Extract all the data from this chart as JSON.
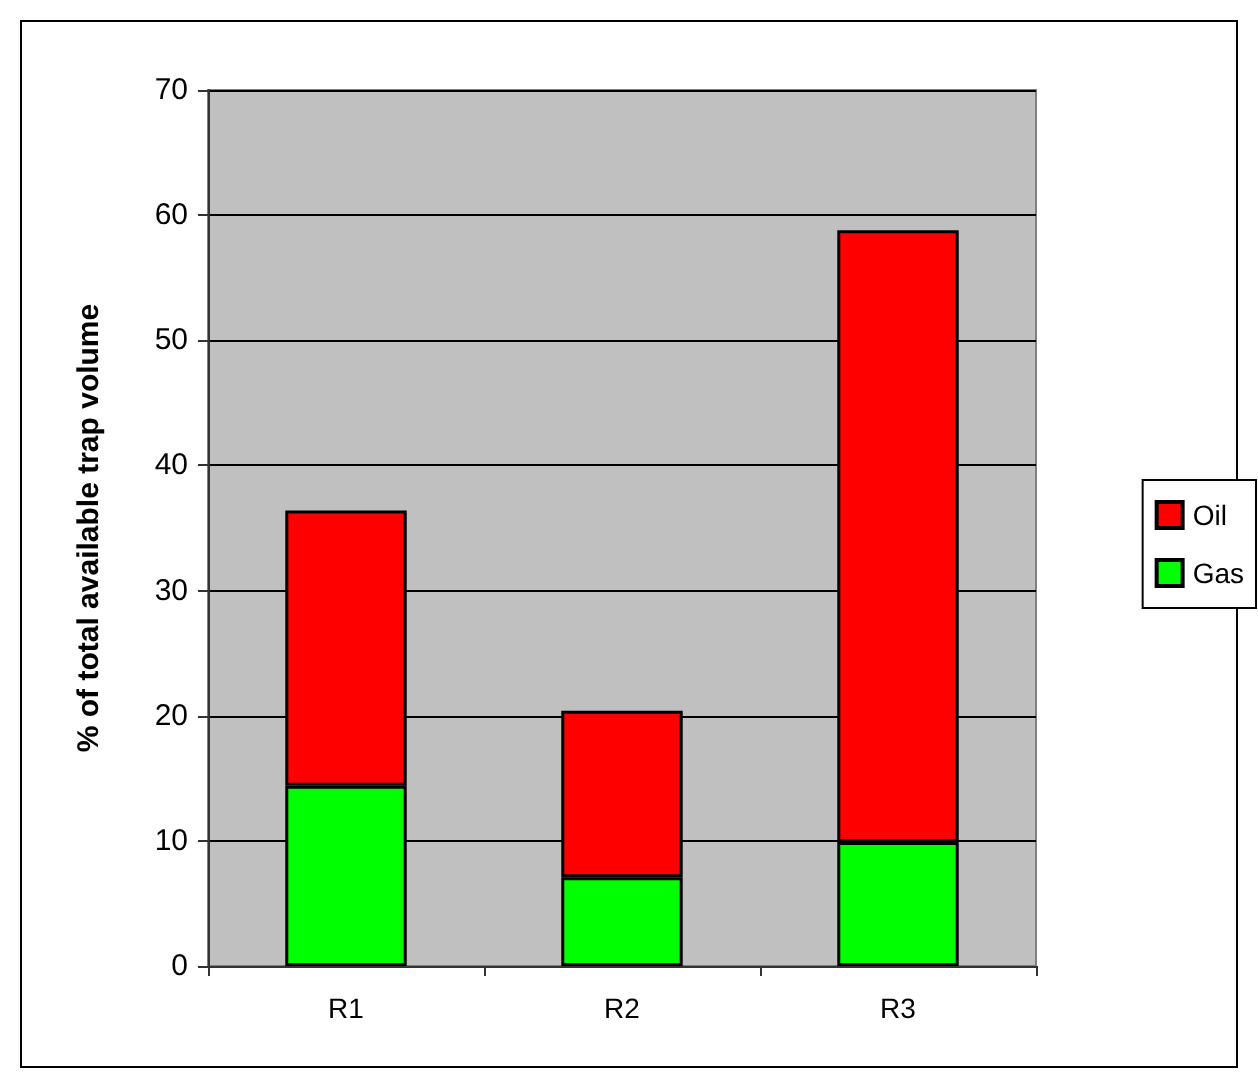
{
  "chart_data": {
    "type": "bar",
    "ylabel": "% of total available trap volume",
    "categories": [
      "R1",
      "R2",
      "R3"
    ],
    "series": [
      {
        "name": "Gas",
        "color": "#00ff00",
        "values": [
          14.4,
          7.1,
          9.9
        ]
      },
      {
        "name": "Oil",
        "color": "#ff0000",
        "values": [
          22.0,
          13.3,
          48.9
        ]
      }
    ],
    "stacked": true,
    "ylim": [
      0,
      70
    ],
    "yticks": [
      0,
      10,
      20,
      30,
      40,
      50,
      60,
      70
    ],
    "grid": "y",
    "legend": "right"
  }
}
